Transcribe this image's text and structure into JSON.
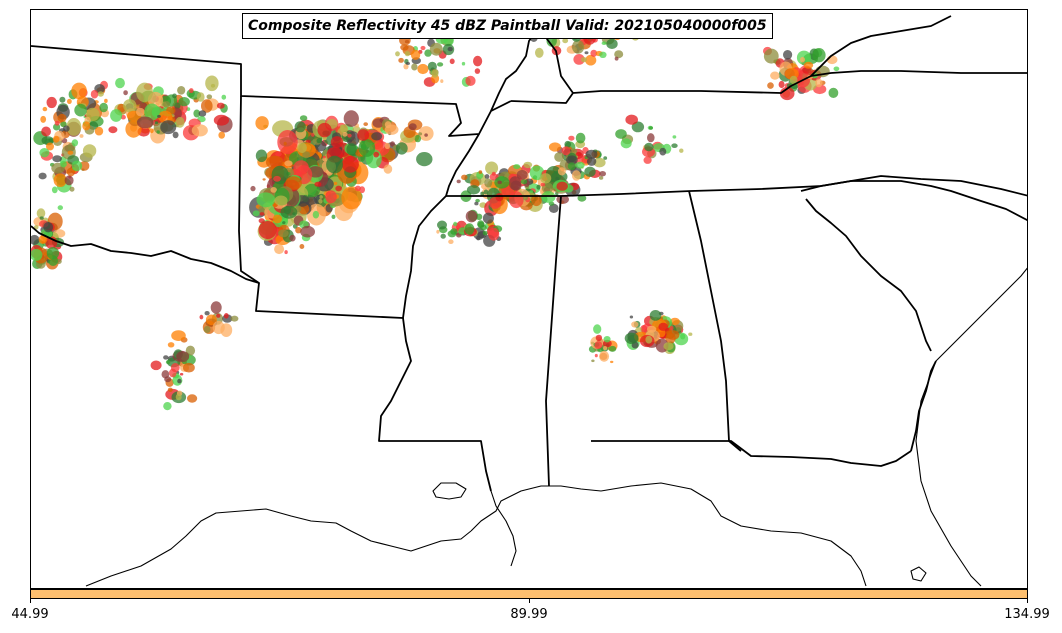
{
  "title": "Composite Reflectivity 45 dBZ Paintball Valid: 202105040000f005",
  "colorbar": {
    "color": "#fdbf6f",
    "tick_labels": [
      "44.99",
      "89.99",
      "134.99"
    ]
  },
  "member_colors": [
    "#e31a1c",
    "#fb3a3a",
    "#ff7f00",
    "#fdae61",
    "#33a02c",
    "#4ed44e",
    "#8c8c3c",
    "#b5b54a",
    "#2e7d32",
    "#8b3a3a",
    "#d95f02",
    "#444444"
  ],
  "map_features": [
    "state-borders",
    "coastline",
    "lakes"
  ]
}
